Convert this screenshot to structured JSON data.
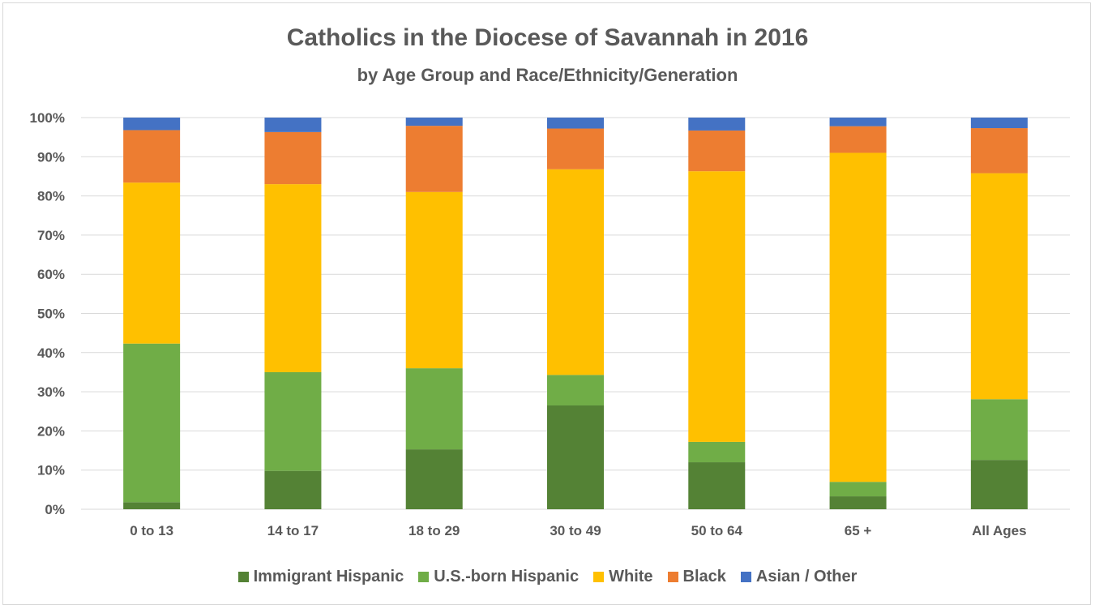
{
  "chart_data": {
    "type": "bar",
    "stacked": true,
    "title": "Catholics in the Diocese of Savannah in 2016",
    "subtitle": "by Age Group and Race/Ethnicity/Generation",
    "categories": [
      "0 to 13",
      "14 to 17",
      "18 to 29",
      "30 to 49",
      "50 to 64",
      "65 +",
      "All Ages"
    ],
    "ylim": [
      0,
      100
    ],
    "yticks": [
      "0%",
      "10%",
      "20%",
      "30%",
      "40%",
      "50%",
      "60%",
      "70%",
      "80%",
      "90%",
      "100%"
    ],
    "grid": true,
    "legend_position": "bottom",
    "series": [
      {
        "name": "Immigrant Hispanic",
        "color": "#548235",
        "values": [
          1.8,
          9.8,
          15.3,
          26.5,
          12.0,
          3.3,
          12.6
        ]
      },
      {
        "name": "U.S.-born Hispanic",
        "color": "#70ad47",
        "values": [
          40.5,
          25.2,
          20.7,
          7.8,
          5.2,
          3.7,
          15.5
        ]
      },
      {
        "name": "White",
        "color": "#ffc000",
        "values": [
          41.1,
          48.0,
          45.0,
          52.5,
          69.1,
          84.0,
          57.7
        ]
      },
      {
        "name": "Black",
        "color": "#ed7d31",
        "values": [
          13.4,
          13.3,
          16.9,
          10.4,
          10.4,
          6.8,
          11.5
        ]
      },
      {
        "name": "Asian / Other",
        "color": "#4472c4",
        "values": [
          3.2,
          3.7,
          2.1,
          2.8,
          3.3,
          2.2,
          2.7
        ]
      }
    ]
  }
}
